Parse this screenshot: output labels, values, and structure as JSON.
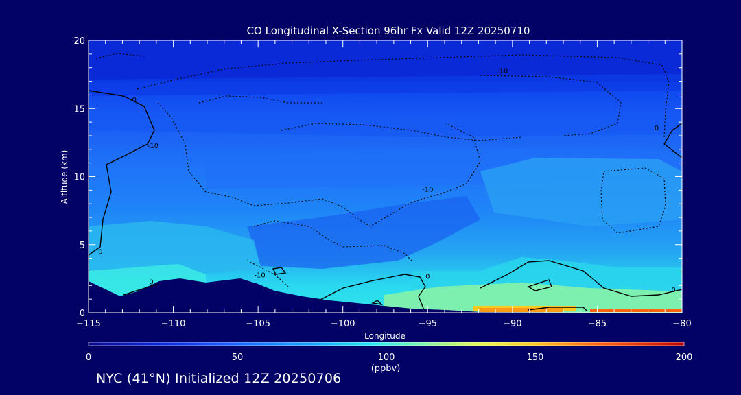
{
  "chart_data": {
    "type": "heatmap",
    "title": "CO Longitudinal X-Section 96hr  Fx Valid 12Z 20250710",
    "xlabel": "Longitude",
    "ylabel": "Altitude (km)",
    "xlim": [
      -115,
      -80
    ],
    "ylim": [
      0,
      20
    ],
    "x_ticks": [
      -115,
      -110,
      -105,
      -100,
      -95,
      -90,
      -85,
      -80
    ],
    "x_tick_labels": [
      "−115",
      "−110",
      "−105",
      "−100",
      "−95",
      "−90",
      "−85",
      "−80"
    ],
    "y_ticks": [
      0,
      5,
      10,
      15,
      20
    ],
    "y_tick_labels": [
      "0",
      "5",
      "10",
      "15",
      "20"
    ],
    "colorbar": {
      "min": 0,
      "max": 200,
      "ticks": [
        0,
        50,
        100,
        150,
        200
      ],
      "tick_labels": [
        "0",
        "50",
        "100",
        "150",
        "200"
      ],
      "unit": "(ppbv)"
    },
    "contour_labels": [
      {
        "text": "-10",
        "lon": -90.6,
        "alt": 17.6
      },
      {
        "text": "0",
        "lon": -112.3,
        "alt": 15.5
      },
      {
        "text": "-10",
        "lon": -111.2,
        "alt": 12.1
      },
      {
        "text": "-10",
        "lon": -95.0,
        "alt": 8.9
      },
      {
        "text": "0",
        "lon": -81.5,
        "alt": 13.4
      },
      {
        "text": "0",
        "lon": -114.3,
        "alt": 4.3
      },
      {
        "text": "0",
        "lon": -111.3,
        "alt": 2.1
      },
      {
        "text": "-10",
        "lon": -104.9,
        "alt": 2.6
      },
      {
        "text": "0",
        "lon": -95.0,
        "alt": 2.5
      },
      {
        "text": "0",
        "lon": -80.5,
        "alt": 1.5
      }
    ]
  },
  "footer": "NYC (41°N) Initialized 12Z 20250706"
}
